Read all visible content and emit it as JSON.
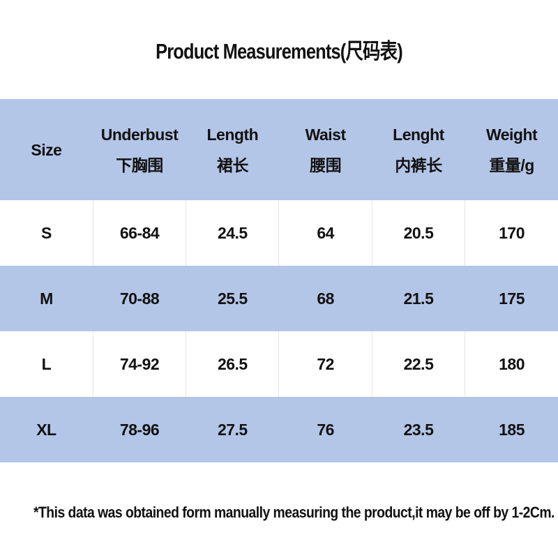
{
  "title": "Product Measurements(尺码表)",
  "table": {
    "header": [
      {
        "en": "Size"
      },
      {
        "en": "Underbust",
        "zh": "下胸围"
      },
      {
        "en": "Length",
        "zh": "裙长"
      },
      {
        "en": "Waist",
        "zh": "腰围"
      },
      {
        "en": "Lenght",
        "zh": "内裤长"
      },
      {
        "en": "Weight",
        "zh": "重量/g"
      }
    ],
    "rows": [
      [
        "S",
        "66-84",
        "24.5",
        "64",
        "20.5",
        "170"
      ],
      [
        "M",
        "70-88",
        "25.5",
        "68",
        "21.5",
        "175"
      ],
      [
        "L",
        "74-92",
        "26.5",
        "72",
        "22.5",
        "180"
      ],
      [
        "XL",
        "78-96",
        "27.5",
        "76",
        "23.5",
        "185"
      ]
    ]
  },
  "footnote": "*This data was obtained form manually measuring the product,it may be off by 1-2Cm."
}
